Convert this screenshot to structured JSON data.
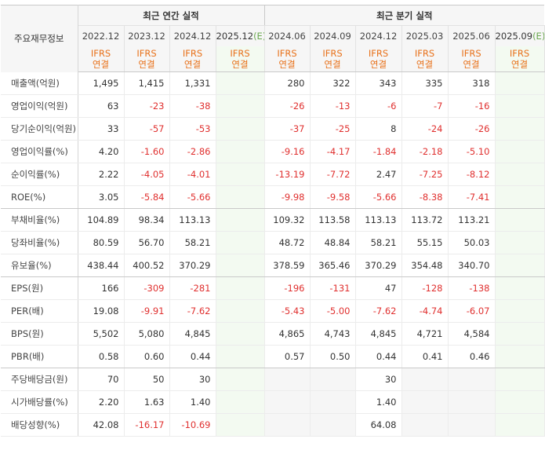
{
  "header": {
    "side_label": "주요재무정보",
    "annual_title": "최근 연간 실적",
    "quarter_title": "최근 분기 실적",
    "periods": [
      "2022.12",
      "2023.12",
      "2024.12",
      "2025.12",
      "2024.06",
      "2024.09",
      "2024.12",
      "2025.03",
      "2025.06",
      "2025.09"
    ],
    "estimate_mark": "(E)",
    "ifrs_line1": "IFRS",
    "ifrs_line2": "연결"
  },
  "rows": [
    {
      "label": "매출액(억원)",
      "values": [
        "1,495",
        "1,415",
        "1,331",
        "",
        "280",
        "322",
        "343",
        "335",
        "318",
        ""
      ]
    },
    {
      "label": "영업이익(억원)",
      "values": [
        "63",
        "-23",
        "-38",
        "",
        "-26",
        "-13",
        "-6",
        "-7",
        "-16",
        ""
      ]
    },
    {
      "label": "당기순이익(억원)",
      "values": [
        "33",
        "-57",
        "-53",
        "",
        "-37",
        "-25",
        "8",
        "-24",
        "-26",
        ""
      ]
    },
    {
      "label": "영업이익률(%)",
      "values": [
        "4.20",
        "-1.60",
        "-2.86",
        "",
        "-9.16",
        "-4.17",
        "-1.84",
        "-2.18",
        "-5.10",
        ""
      ]
    },
    {
      "label": "순이익률(%)",
      "values": [
        "2.22",
        "-4.05",
        "-4.01",
        "",
        "-13.19",
        "-7.72",
        "2.47",
        "-7.25",
        "-8.12",
        ""
      ]
    },
    {
      "label": "ROE(%)",
      "values": [
        "3.05",
        "-5.84",
        "-5.66",
        "",
        "-9.98",
        "-9.58",
        "-5.66",
        "-8.38",
        "-7.41",
        ""
      ]
    },
    {
      "label": "부채비율(%)",
      "values": [
        "104.89",
        "98.34",
        "113.13",
        "",
        "109.32",
        "113.58",
        "113.13",
        "113.72",
        "113.21",
        ""
      ]
    },
    {
      "label": "당좌비율(%)",
      "values": [
        "80.59",
        "56.70",
        "58.21",
        "",
        "48.72",
        "48.84",
        "58.21",
        "55.15",
        "50.03",
        ""
      ]
    },
    {
      "label": "유보율(%)",
      "values": [
        "438.44",
        "400.52",
        "370.29",
        "",
        "378.59",
        "365.46",
        "370.29",
        "354.48",
        "340.70",
        ""
      ]
    },
    {
      "label": "EPS(원)",
      "values": [
        "166",
        "-309",
        "-281",
        "",
        "-196",
        "-131",
        "47",
        "-128",
        "-138",
        ""
      ]
    },
    {
      "label": "PER(배)",
      "values": [
        "19.08",
        "-9.91",
        "-7.62",
        "",
        "-5.43",
        "-5.00",
        "-7.62",
        "-4.74",
        "-6.07",
        ""
      ]
    },
    {
      "label": "BPS(원)",
      "values": [
        "5,502",
        "5,080",
        "4,845",
        "",
        "4,865",
        "4,743",
        "4,845",
        "4,721",
        "4,584",
        ""
      ]
    },
    {
      "label": "PBR(배)",
      "values": [
        "0.58",
        "0.60",
        "0.44",
        "",
        "0.57",
        "0.50",
        "0.44",
        "0.41",
        "0.46",
        ""
      ]
    },
    {
      "label": "주당배당금(원)",
      "values": [
        "70",
        "50",
        "30",
        "",
        "",
        "",
        "30",
        "",
        "",
        ""
      ]
    },
    {
      "label": "시가배당률(%)",
      "values": [
        "2.20",
        "1.63",
        "1.40",
        "",
        "",
        "",
        "1.40",
        "",
        "",
        ""
      ]
    },
    {
      "label": "배당성향(%)",
      "values": [
        "42.08",
        "-16.17",
        "-10.69",
        "",
        "",
        "",
        "64.08",
        "",
        "",
        ""
      ]
    }
  ]
}
